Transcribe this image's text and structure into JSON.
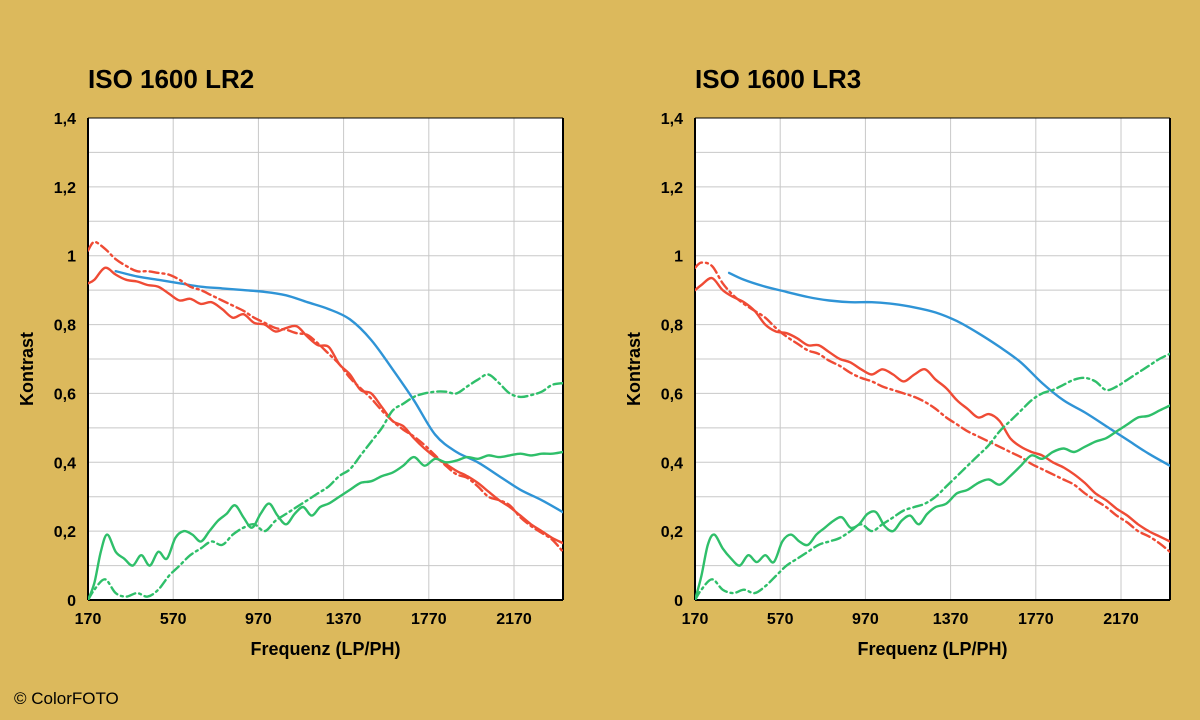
{
  "colors": {
    "background": "#dcb95c",
    "plot_bg": "#ffffff",
    "grid": "#c8c8c8",
    "blue": "#2f94d6",
    "red": "#ef4b35",
    "green": "#2fbf6a"
  },
  "copyright": "© ColorFOTO",
  "chart_data": [
    {
      "type": "line",
      "title": "ISO 1600 LR2",
      "xlabel": "Frequenz (LP/PH)",
      "ylabel": "Kontrast",
      "xlim": [
        170,
        2400
      ],
      "ylim": [
        0,
        1.4
      ],
      "xticks": [
        170,
        570,
        970,
        1370,
        1770,
        2170
      ],
      "xtick_labels": [
        "170",
        "570",
        "970",
        "1370",
        "1770",
        "2170"
      ],
      "yticks": [
        0,
        0.2,
        0.4,
        0.6,
        0.8,
        1,
        1.2,
        1.4
      ],
      "ytick_labels": [
        "0",
        "0,2",
        "0,4",
        "0,6",
        "0,8",
        "1",
        "1,2",
        "1,4"
      ],
      "grid": true,
      "series": [
        {
          "name": "blue-solid",
          "color": "blue",
          "dash": "solid",
          "x": [
            300,
            400,
            500,
            600,
            700,
            800,
            900,
            1000,
            1100,
            1200,
            1300,
            1400,
            1500,
            1600,
            1700,
            1800,
            1900,
            2000,
            2100,
            2200,
            2300,
            2400
          ],
          "y": [
            0.955,
            0.94,
            0.93,
            0.92,
            0.91,
            0.905,
            0.9,
            0.895,
            0.885,
            0.865,
            0.845,
            0.815,
            0.755,
            0.67,
            0.58,
            0.48,
            0.43,
            0.4,
            0.36,
            0.32,
            0.29,
            0.255
          ]
        },
        {
          "name": "red-solid",
          "color": "red",
          "dash": "solid",
          "x": [
            170,
            200,
            250,
            300,
            350,
            400,
            450,
            500,
            550,
            600,
            650,
            700,
            750,
            800,
            850,
            900,
            950,
            1000,
            1050,
            1100,
            1150,
            1200,
            1250,
            1300,
            1350,
            1400,
            1450,
            1500,
            1550,
            1600,
            1650,
            1700,
            1750,
            1800,
            1850,
            1900,
            1950,
            2000,
            2050,
            2100,
            2150,
            2200,
            2250,
            2300,
            2350,
            2400
          ],
          "y": [
            0.92,
            0.93,
            0.965,
            0.945,
            0.93,
            0.925,
            0.915,
            0.91,
            0.89,
            0.87,
            0.875,
            0.86,
            0.865,
            0.845,
            0.82,
            0.83,
            0.805,
            0.8,
            0.78,
            0.79,
            0.795,
            0.765,
            0.74,
            0.735,
            0.685,
            0.655,
            0.61,
            0.6,
            0.56,
            0.52,
            0.505,
            0.47,
            0.44,
            0.415,
            0.395,
            0.375,
            0.36,
            0.34,
            0.315,
            0.29,
            0.27,
            0.245,
            0.22,
            0.2,
            0.18,
            0.165
          ]
        },
        {
          "name": "red-dashdot",
          "color": "red",
          "dash": "dashdot",
          "x": [
            170,
            200,
            250,
            300,
            350,
            400,
            450,
            500,
            550,
            600,
            650,
            700,
            750,
            800,
            850,
            900,
            950,
            1000,
            1050,
            1100,
            1150,
            1200,
            1250,
            1300,
            1350,
            1400,
            1450,
            1500,
            1550,
            1600,
            1650,
            1700,
            1750,
            1800,
            1850,
            1900,
            1950,
            2000,
            2050,
            2100,
            2150,
            2200,
            2250,
            2300,
            2350,
            2400
          ],
          "y": [
            1.015,
            1.04,
            1.02,
            0.99,
            0.97,
            0.955,
            0.955,
            0.95,
            0.945,
            0.93,
            0.91,
            0.9,
            0.885,
            0.87,
            0.855,
            0.84,
            0.82,
            0.805,
            0.79,
            0.785,
            0.775,
            0.77,
            0.745,
            0.715,
            0.685,
            0.645,
            0.615,
            0.585,
            0.55,
            0.52,
            0.495,
            0.475,
            0.45,
            0.42,
            0.39,
            0.365,
            0.355,
            0.33,
            0.3,
            0.29,
            0.275,
            0.24,
            0.215,
            0.195,
            0.175,
            0.14
          ]
        },
        {
          "name": "green-solid",
          "color": "green",
          "dash": "solid",
          "x": [
            170,
            200,
            230,
            260,
            300,
            340,
            380,
            420,
            460,
            500,
            540,
            580,
            620,
            660,
            700,
            740,
            780,
            820,
            860,
            900,
            940,
            980,
            1020,
            1060,
            1100,
            1140,
            1180,
            1220,
            1260,
            1300,
            1350,
            1400,
            1450,
            1500,
            1550,
            1600,
            1650,
            1700,
            1750,
            1800,
            1850,
            1900,
            1950,
            2000,
            2050,
            2100,
            2150,
            2200,
            2250,
            2300,
            2350,
            2400
          ],
          "y": [
            0.0,
            0.05,
            0.14,
            0.19,
            0.14,
            0.12,
            0.1,
            0.13,
            0.1,
            0.14,
            0.12,
            0.18,
            0.2,
            0.19,
            0.17,
            0.2,
            0.23,
            0.25,
            0.275,
            0.24,
            0.21,
            0.25,
            0.28,
            0.245,
            0.22,
            0.25,
            0.27,
            0.245,
            0.27,
            0.28,
            0.3,
            0.32,
            0.34,
            0.345,
            0.36,
            0.37,
            0.39,
            0.415,
            0.39,
            0.41,
            0.4,
            0.405,
            0.415,
            0.41,
            0.42,
            0.415,
            0.42,
            0.425,
            0.42,
            0.425,
            0.425,
            0.43
          ]
        },
        {
          "name": "green-dashdot",
          "color": "green",
          "dash": "dashdot",
          "x": [
            170,
            200,
            250,
            300,
            350,
            400,
            450,
            500,
            550,
            600,
            650,
            700,
            750,
            800,
            850,
            900,
            950,
            1000,
            1050,
            1100,
            1150,
            1200,
            1250,
            1300,
            1350,
            1400,
            1450,
            1500,
            1550,
            1600,
            1650,
            1700,
            1750,
            1800,
            1850,
            1900,
            1950,
            2000,
            2050,
            2100,
            2150,
            2200,
            2250,
            2300,
            2350,
            2400
          ],
          "y": [
            0.0,
            0.03,
            0.06,
            0.02,
            0.01,
            0.02,
            0.01,
            0.03,
            0.07,
            0.1,
            0.13,
            0.15,
            0.17,
            0.16,
            0.19,
            0.21,
            0.22,
            0.2,
            0.23,
            0.25,
            0.27,
            0.29,
            0.31,
            0.33,
            0.36,
            0.38,
            0.42,
            0.46,
            0.5,
            0.55,
            0.57,
            0.59,
            0.6,
            0.605,
            0.605,
            0.6,
            0.62,
            0.64,
            0.655,
            0.63,
            0.6,
            0.59,
            0.595,
            0.605,
            0.625,
            0.63
          ]
        }
      ]
    },
    {
      "type": "line",
      "title": "ISO 1600 LR3",
      "xlabel": "Frequenz (LP/PH)",
      "ylabel": "Kontrast",
      "xlim": [
        170,
        2400
      ],
      "ylim": [
        0,
        1.4
      ],
      "xticks": [
        170,
        570,
        970,
        1370,
        1770,
        2170
      ],
      "xtick_labels": [
        "170",
        "570",
        "970",
        "1370",
        "1770",
        "2170"
      ],
      "yticks": [
        0,
        0.2,
        0.4,
        0.6,
        0.8,
        1,
        1.2,
        1.4
      ],
      "ytick_labels": [
        "0",
        "0,2",
        "0,4",
        "0,6",
        "0,8",
        "1",
        "1,2",
        "1,4"
      ],
      "grid": true,
      "series": [
        {
          "name": "blue-solid",
          "color": "blue",
          "dash": "solid",
          "x": [
            330,
            400,
            500,
            600,
            700,
            800,
            900,
            1000,
            1100,
            1200,
            1300,
            1400,
            1500,
            1600,
            1700,
            1800,
            1900,
            2000,
            2100,
            2200,
            2300,
            2400
          ],
          "y": [
            0.95,
            0.93,
            0.91,
            0.895,
            0.88,
            0.87,
            0.865,
            0.865,
            0.86,
            0.85,
            0.835,
            0.81,
            0.775,
            0.735,
            0.69,
            0.63,
            0.58,
            0.545,
            0.505,
            0.465,
            0.425,
            0.39
          ]
        },
        {
          "name": "red-solid",
          "color": "red",
          "dash": "solid",
          "x": [
            170,
            200,
            250,
            300,
            350,
            400,
            450,
            500,
            550,
            600,
            650,
            700,
            750,
            800,
            850,
            900,
            950,
            1000,
            1050,
            1100,
            1150,
            1200,
            1250,
            1300,
            1350,
            1400,
            1450,
            1500,
            1550,
            1600,
            1650,
            1700,
            1750,
            1800,
            1850,
            1900,
            1950,
            2000,
            2050,
            2100,
            2150,
            2200,
            2250,
            2300,
            2350,
            2400
          ],
          "y": [
            0.9,
            0.915,
            0.935,
            0.9,
            0.88,
            0.865,
            0.84,
            0.8,
            0.78,
            0.775,
            0.76,
            0.74,
            0.74,
            0.72,
            0.7,
            0.69,
            0.67,
            0.655,
            0.67,
            0.655,
            0.635,
            0.655,
            0.67,
            0.64,
            0.615,
            0.58,
            0.555,
            0.53,
            0.54,
            0.52,
            0.47,
            0.445,
            0.43,
            0.42,
            0.4,
            0.385,
            0.365,
            0.34,
            0.31,
            0.29,
            0.265,
            0.245,
            0.22,
            0.2,
            0.185,
            0.17
          ]
        },
        {
          "name": "red-dashdot",
          "color": "red",
          "dash": "dashdot",
          "x": [
            170,
            200,
            250,
            300,
            350,
            400,
            450,
            500,
            550,
            600,
            650,
            700,
            750,
            800,
            850,
            900,
            950,
            1000,
            1050,
            1100,
            1150,
            1200,
            1250,
            1300,
            1350,
            1400,
            1450,
            1500,
            1550,
            1600,
            1650,
            1700,
            1750,
            1800,
            1850,
            1900,
            1950,
            2000,
            2050,
            2100,
            2150,
            2200,
            2250,
            2300,
            2350,
            2400
          ],
          "y": [
            0.965,
            0.98,
            0.97,
            0.92,
            0.885,
            0.86,
            0.84,
            0.82,
            0.79,
            0.765,
            0.745,
            0.725,
            0.715,
            0.695,
            0.68,
            0.66,
            0.645,
            0.635,
            0.62,
            0.61,
            0.6,
            0.59,
            0.575,
            0.555,
            0.53,
            0.51,
            0.49,
            0.475,
            0.46,
            0.445,
            0.43,
            0.415,
            0.395,
            0.38,
            0.365,
            0.35,
            0.335,
            0.31,
            0.29,
            0.27,
            0.245,
            0.225,
            0.2,
            0.185,
            0.165,
            0.14
          ]
        },
        {
          "name": "green-solid",
          "color": "green",
          "dash": "solid",
          "x": [
            170,
            200,
            230,
            260,
            300,
            340,
            380,
            420,
            460,
            500,
            540,
            580,
            620,
            660,
            700,
            740,
            780,
            820,
            860,
            900,
            940,
            980,
            1020,
            1060,
            1100,
            1140,
            1180,
            1220,
            1260,
            1300,
            1350,
            1400,
            1450,
            1500,
            1550,
            1600,
            1650,
            1700,
            1750,
            1800,
            1850,
            1900,
            1950,
            2000,
            2050,
            2100,
            2150,
            2200,
            2250,
            2300,
            2350,
            2400
          ],
          "y": [
            0.0,
            0.07,
            0.16,
            0.19,
            0.15,
            0.12,
            0.1,
            0.13,
            0.11,
            0.13,
            0.11,
            0.17,
            0.19,
            0.17,
            0.16,
            0.19,
            0.21,
            0.23,
            0.24,
            0.21,
            0.22,
            0.25,
            0.255,
            0.215,
            0.2,
            0.23,
            0.245,
            0.22,
            0.25,
            0.27,
            0.28,
            0.31,
            0.32,
            0.34,
            0.35,
            0.335,
            0.36,
            0.39,
            0.42,
            0.41,
            0.43,
            0.44,
            0.43,
            0.445,
            0.46,
            0.47,
            0.49,
            0.51,
            0.53,
            0.535,
            0.55,
            0.565
          ]
        },
        {
          "name": "green-dashdot",
          "color": "green",
          "dash": "dashdot",
          "x": [
            170,
            200,
            250,
            300,
            350,
            400,
            450,
            500,
            550,
            600,
            650,
            700,
            750,
            800,
            850,
            900,
            950,
            1000,
            1050,
            1100,
            1150,
            1200,
            1250,
            1300,
            1350,
            1400,
            1450,
            1500,
            1550,
            1600,
            1650,
            1700,
            1750,
            1800,
            1850,
            1900,
            1950,
            2000,
            2050,
            2100,
            2150,
            2200,
            2250,
            2300,
            2350,
            2400
          ],
          "y": [
            0.0,
            0.03,
            0.06,
            0.03,
            0.02,
            0.03,
            0.02,
            0.04,
            0.07,
            0.1,
            0.12,
            0.14,
            0.16,
            0.17,
            0.18,
            0.2,
            0.22,
            0.2,
            0.22,
            0.24,
            0.26,
            0.27,
            0.28,
            0.3,
            0.33,
            0.36,
            0.39,
            0.42,
            0.45,
            0.49,
            0.52,
            0.55,
            0.58,
            0.6,
            0.61,
            0.625,
            0.64,
            0.645,
            0.635,
            0.61,
            0.62,
            0.64,
            0.66,
            0.68,
            0.7,
            0.715
          ]
        }
      ]
    }
  ]
}
